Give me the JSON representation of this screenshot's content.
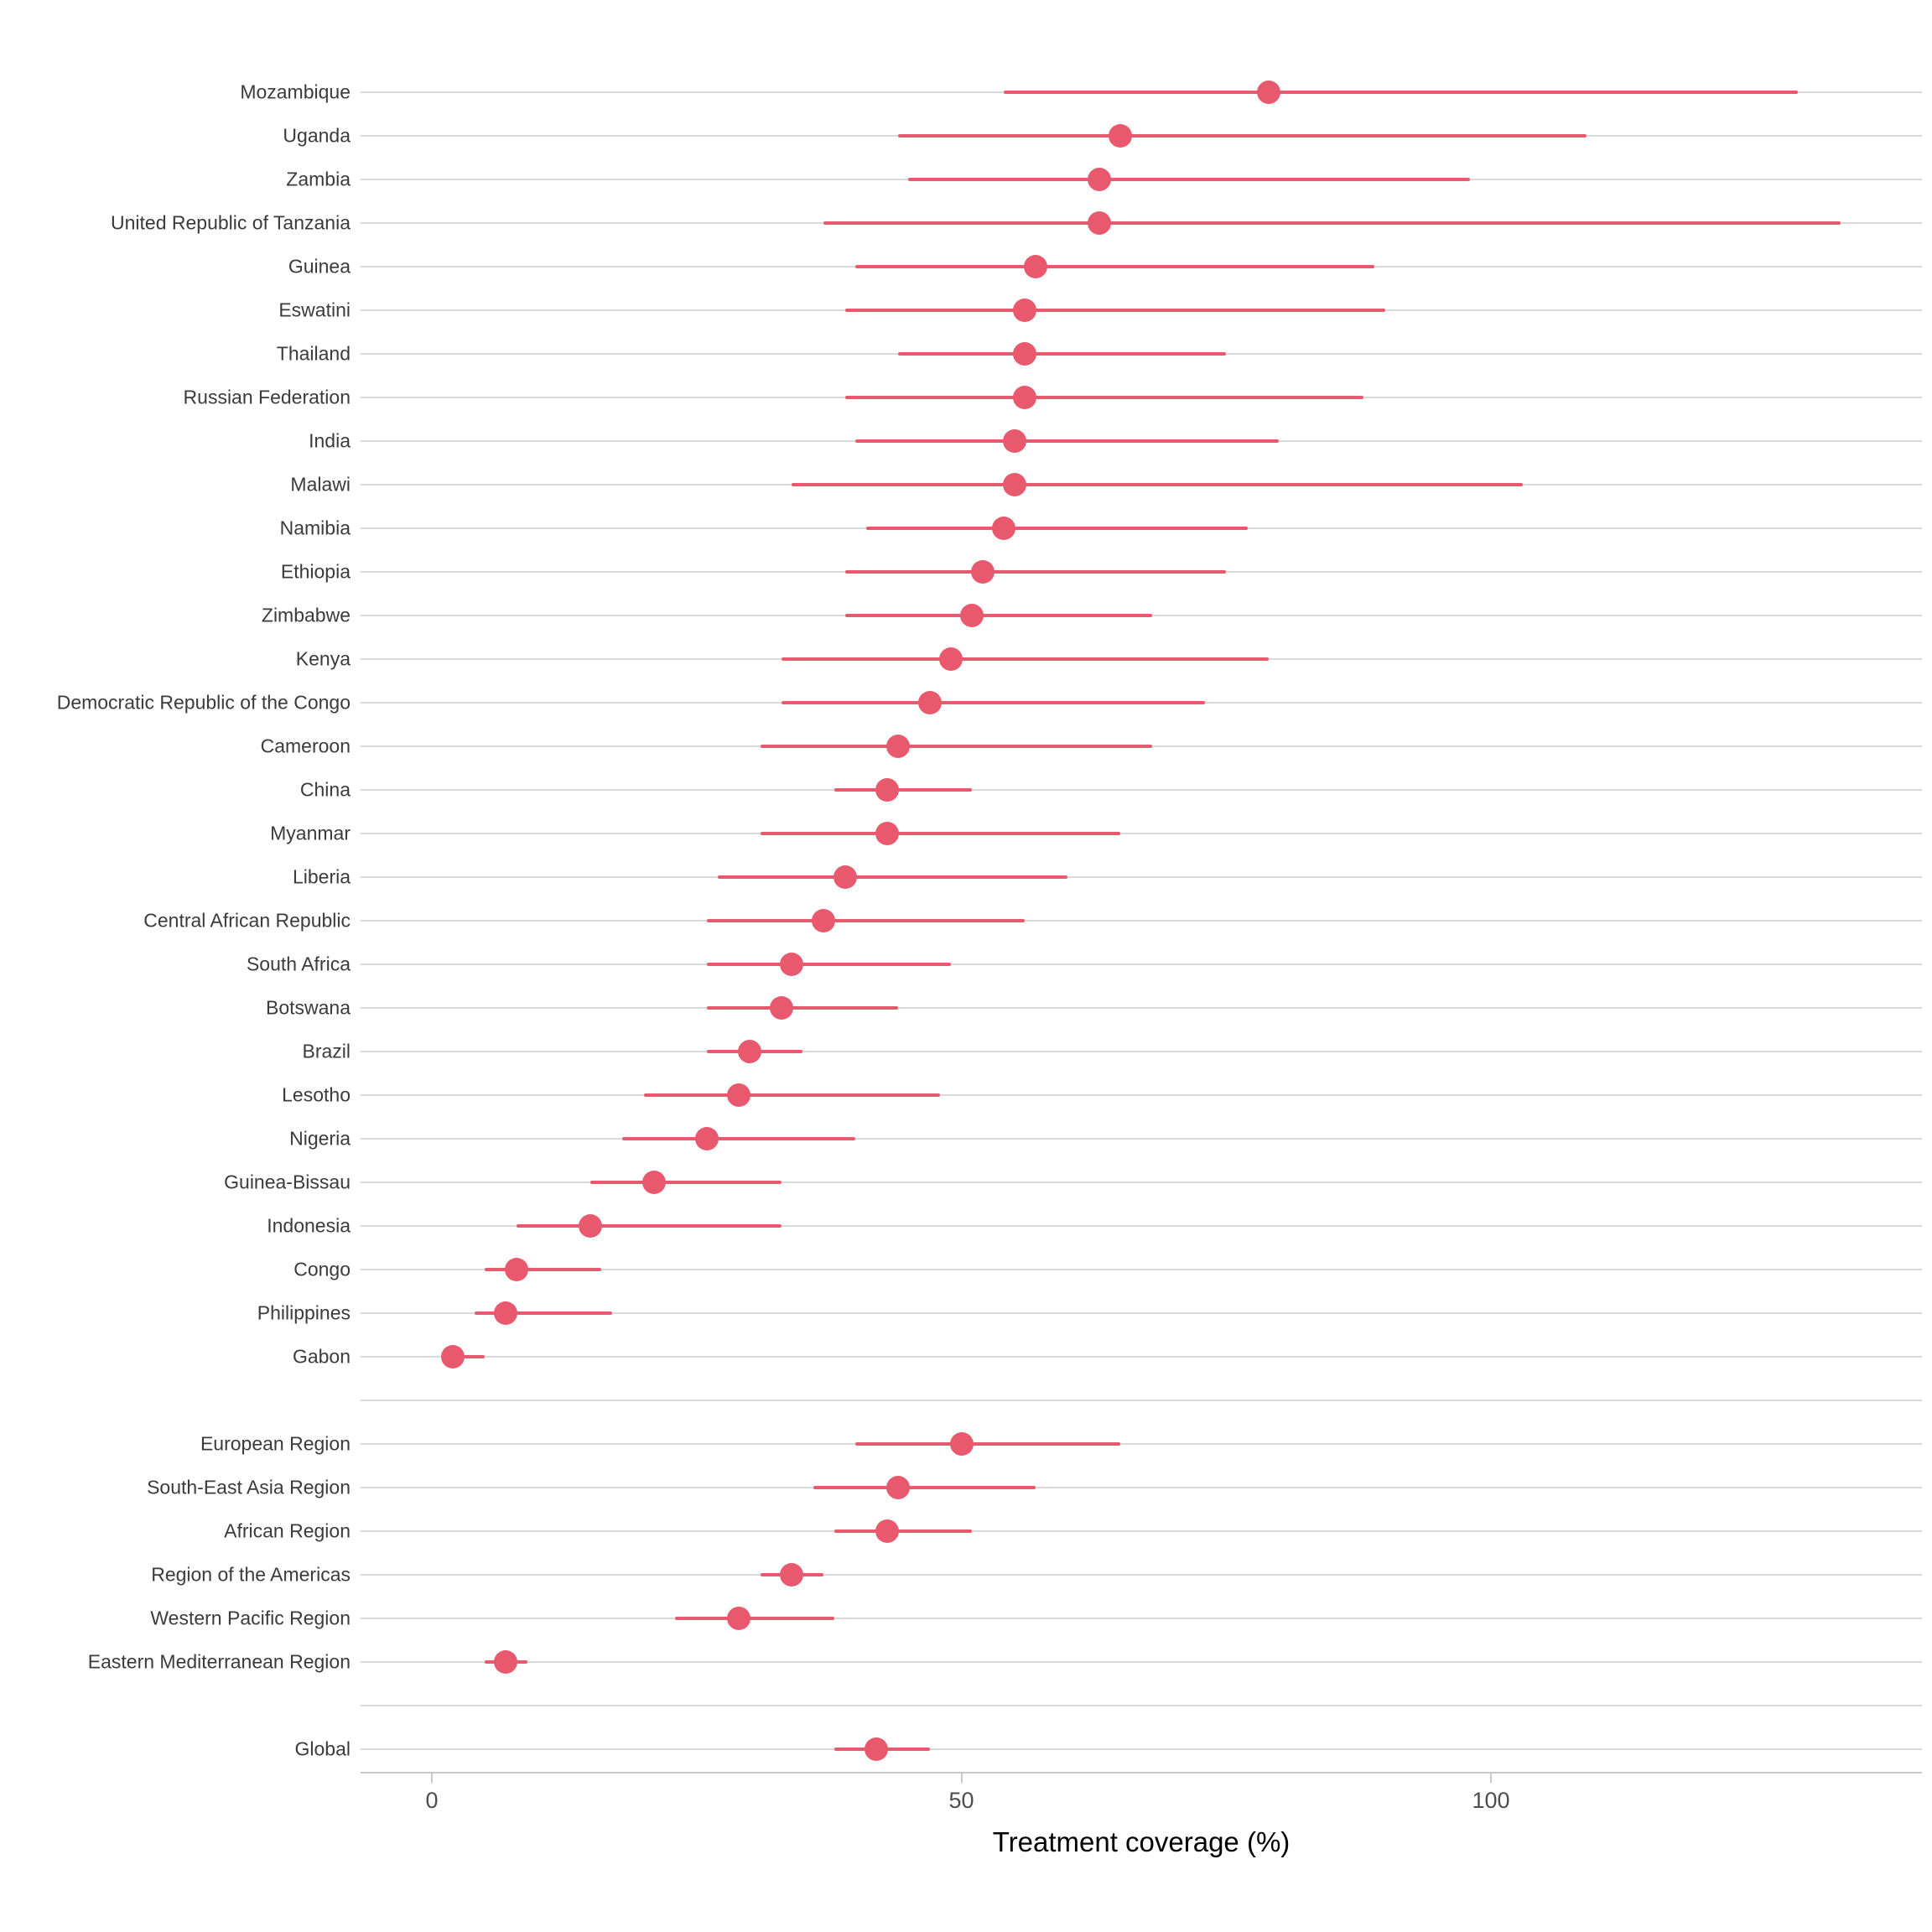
{
  "chart_data": {
    "type": "scatter",
    "subtype": "dot-with-error-bars",
    "title": "",
    "xlabel": "Treatment coverage (%)",
    "ylabel": "",
    "x_ticks": [
      0,
      50,
      100
    ],
    "xlim": [
      -7,
      141
    ],
    "grid": "horizontal-gridlines-on",
    "legend_position": "none",
    "colors": {
      "point": "#e8596e",
      "interval": "#e8596e",
      "gridline": "#dbdbdb",
      "axis_line": "#c9c9c9",
      "label_text": "#3b3b3b",
      "tick_text": "#4d4d4d",
      "title_text": "#000000"
    },
    "sections": [
      {
        "name": "countries",
        "rows": [
          {
            "label": "Mozambique",
            "value": 79,
            "ci_low": 54,
            "ci_high": 129
          },
          {
            "label": "Uganda",
            "value": 65,
            "ci_low": 44,
            "ci_high": 109
          },
          {
            "label": "Zambia",
            "value": 63,
            "ci_low": 45,
            "ci_high": 98
          },
          {
            "label": "United Republic of Tanzania",
            "value": 63,
            "ci_low": 37,
            "ci_high": 133
          },
          {
            "label": "Guinea",
            "value": 57,
            "ci_low": 40,
            "ci_high": 89
          },
          {
            "label": "Eswatini",
            "value": 56,
            "ci_low": 39,
            "ci_high": 90
          },
          {
            "label": "Thailand",
            "value": 56,
            "ci_low": 44,
            "ci_high": 75
          },
          {
            "label": "Russian Federation",
            "value": 56,
            "ci_low": 39,
            "ci_high": 88
          },
          {
            "label": "India",
            "value": 55,
            "ci_low": 40,
            "ci_high": 80
          },
          {
            "label": "Malawi",
            "value": 55,
            "ci_low": 34,
            "ci_high": 103
          },
          {
            "label": "Namibia",
            "value": 54,
            "ci_low": 41,
            "ci_high": 77
          },
          {
            "label": "Ethiopia",
            "value": 52,
            "ci_low": 39,
            "ci_high": 75
          },
          {
            "label": "Zimbabwe",
            "value": 51,
            "ci_low": 39,
            "ci_high": 68
          },
          {
            "label": "Kenya",
            "value": 49,
            "ci_low": 33,
            "ci_high": 79
          },
          {
            "label": "Democratic Republic of the Congo",
            "value": 47,
            "ci_low": 33,
            "ci_high": 73
          },
          {
            "label": "Cameroon",
            "value": 44,
            "ci_low": 31,
            "ci_high": 68
          },
          {
            "label": "China",
            "value": 43,
            "ci_low": 38,
            "ci_high": 51
          },
          {
            "label": "Myanmar",
            "value": 43,
            "ci_low": 31,
            "ci_high": 65
          },
          {
            "label": "Liberia",
            "value": 39,
            "ci_low": 27,
            "ci_high": 60
          },
          {
            "label": "Central African Republic",
            "value": 37,
            "ci_low": 26,
            "ci_high": 56
          },
          {
            "label": "South Africa",
            "value": 34,
            "ci_low": 26,
            "ci_high": 49
          },
          {
            "label": "Botswana",
            "value": 33,
            "ci_low": 26,
            "ci_high": 44
          },
          {
            "label": "Brazil",
            "value": 30,
            "ci_low": 26,
            "ci_high": 35
          },
          {
            "label": "Lesotho",
            "value": 29,
            "ci_low": 20,
            "ci_high": 48
          },
          {
            "label": "Nigeria",
            "value": 26,
            "ci_low": 18,
            "ci_high": 40
          },
          {
            "label": "Guinea-Bissau",
            "value": 21,
            "ci_low": 15,
            "ci_high": 33
          },
          {
            "label": "Indonesia",
            "value": 15,
            "ci_low": 8,
            "ci_high": 33
          },
          {
            "label": "Congo",
            "value": 8,
            "ci_low": 5,
            "ci_high": 16
          },
          {
            "label": "Philippines",
            "value": 7,
            "ci_low": 4,
            "ci_high": 17
          },
          {
            "label": "Gabon",
            "value": 2,
            "ci_low": 1,
            "ci_high": 5
          }
        ]
      },
      {
        "name": "regions",
        "rows": [
          {
            "label": "European Region",
            "value": 50,
            "ci_low": 40,
            "ci_high": 65
          },
          {
            "label": "South-East Asia Region",
            "value": 44,
            "ci_low": 36,
            "ci_high": 57
          },
          {
            "label": "African Region",
            "value": 43,
            "ci_low": 38,
            "ci_high": 51
          },
          {
            "label": "Region of the Americas",
            "value": 34,
            "ci_low": 31,
            "ci_high": 37
          },
          {
            "label": "Western Pacific Region",
            "value": 29,
            "ci_low": 23,
            "ci_high": 38
          },
          {
            "label": "Eastern Mediterranean Region",
            "value": 7,
            "ci_low": 5,
            "ci_high": 9
          }
        ]
      },
      {
        "name": "global",
        "rows": [
          {
            "label": "Global",
            "value": 42,
            "ci_low": 38,
            "ci_high": 47
          }
        ]
      }
    ]
  }
}
